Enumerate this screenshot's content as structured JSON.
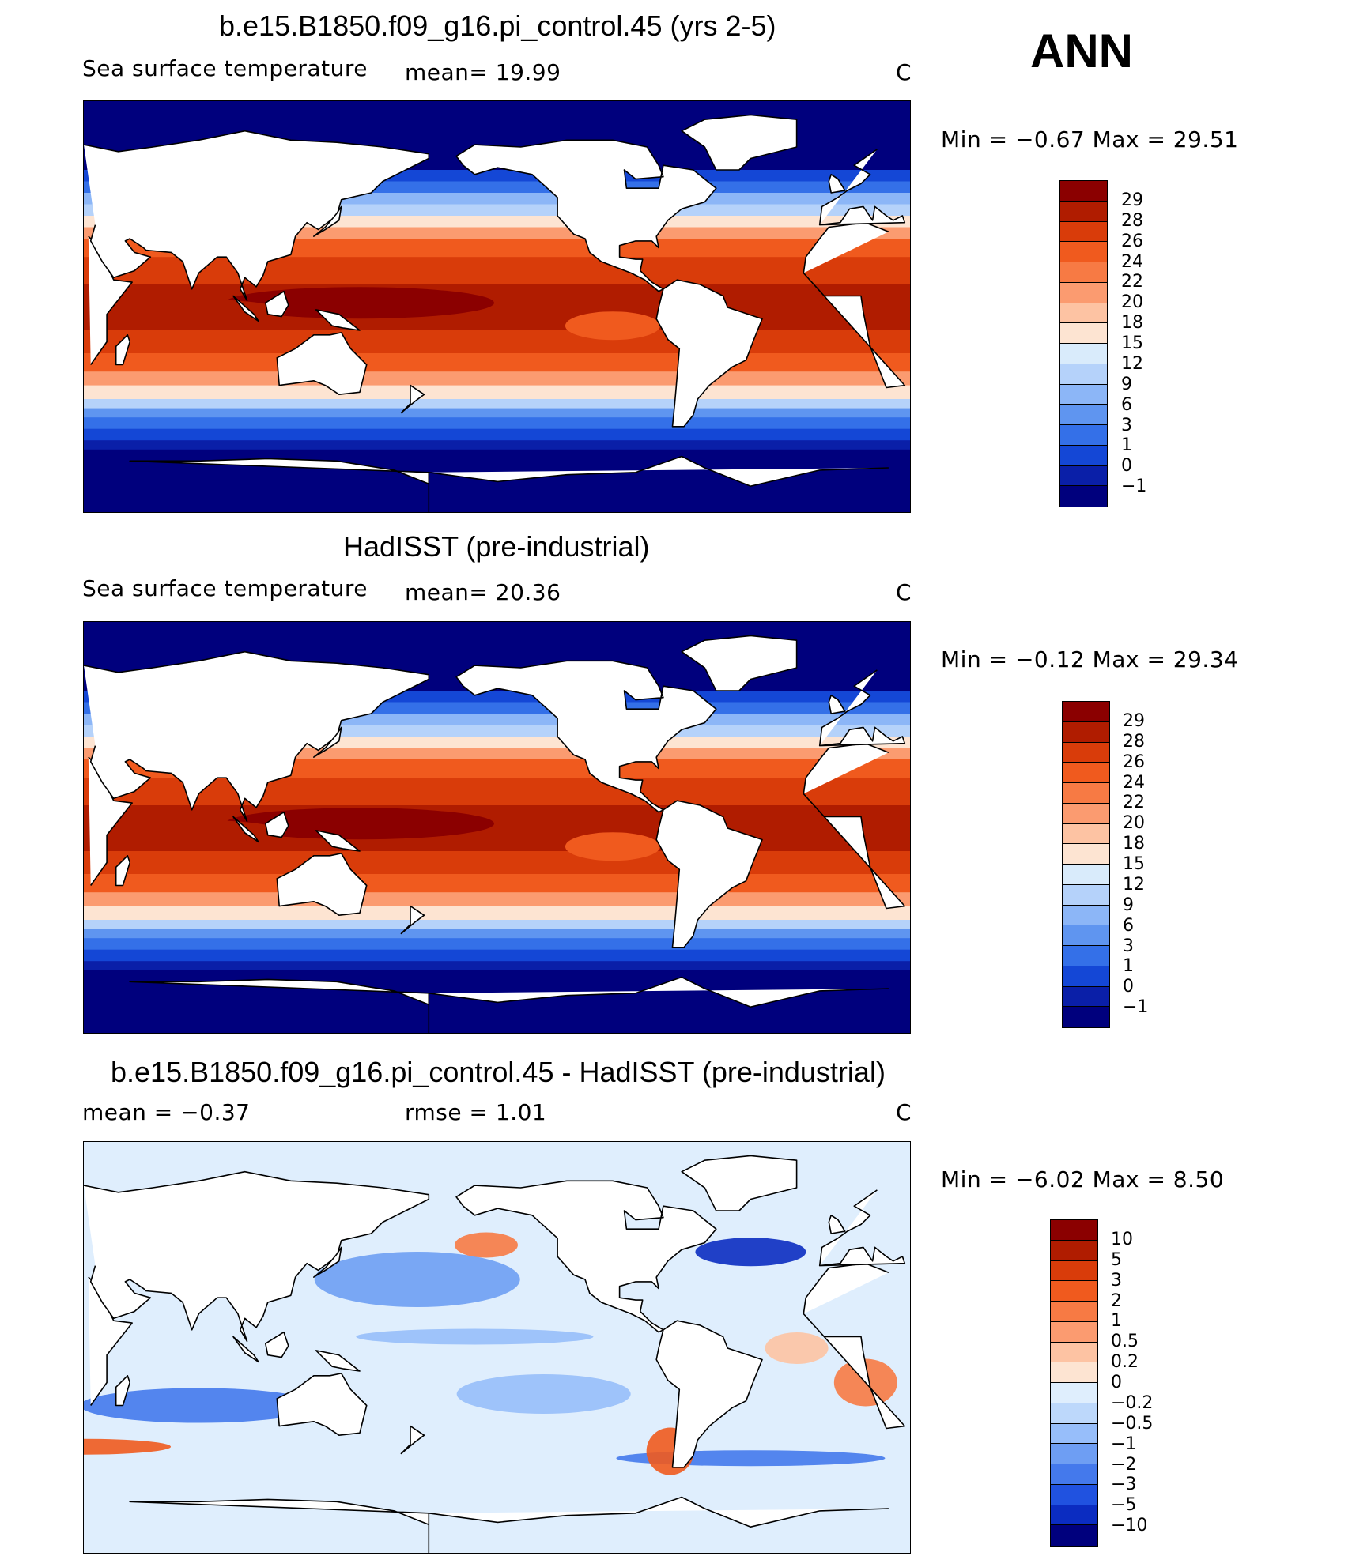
{
  "season": "ANN",
  "panels": [
    {
      "id": "model",
      "title": "b.e15.B1850.f09_g16.pi_control.45 (yrs 2-5)",
      "left_label": "Sea surface temperature",
      "mid_label": "mean=   19.99",
      "units": "C",
      "minmax": "Min  =    −0.67  Max  =     29.51",
      "levels": [
        "29",
        "28",
        "26",
        "24",
        "22",
        "20",
        "18",
        "15",
        "12",
        "9",
        "6",
        "3",
        "1",
        "0",
        "−1"
      ]
    },
    {
      "id": "obs",
      "title": "HadISST (pre-industrial)",
      "left_label": "Sea surface temperature",
      "mid_label": "mean=   20.36",
      "units": "C",
      "minmax": "Min  =    −0.12  Max  =     29.34",
      "levels": [
        "29",
        "28",
        "26",
        "24",
        "22",
        "20",
        "18",
        "15",
        "12",
        "9",
        "6",
        "3",
        "1",
        "0",
        "−1"
      ]
    },
    {
      "id": "diff",
      "title": "b.e15.B1850.f09_g16.pi_control.45 - HadISST (pre-industrial)",
      "left_label": "mean  =   −0.37",
      "mid_label": "rmse  =     1.01",
      "units": "C",
      "minmax": "Min  =    −6.02  Max  =      8.50",
      "levels": [
        "10",
        "5",
        "3",
        "2",
        "1",
        "0.5",
        "0.2",
        "0",
        "−0.2",
        "−0.5",
        "−1",
        "−2",
        "−3",
        "−5",
        "−10"
      ]
    }
  ],
  "colors": {
    "sst_scale": [
      "#8b0000",
      "#b01c00",
      "#d93c0a",
      "#f05a1e",
      "#f77a44",
      "#fb9b70",
      "#fdc3a3",
      "#fde4d2",
      "#d9ebfb",
      "#b5d2fa",
      "#8cb6f7",
      "#5f95f0",
      "#3470e8",
      "#1447d6",
      "#0a1fa8",
      "#00007d"
    ],
    "diff_scale": [
      "#8b0000",
      "#b01c00",
      "#d93c0a",
      "#f05a1e",
      "#f77a44",
      "#fb9b70",
      "#fdc3a3",
      "#fde4d2",
      "#dfeefd",
      "#bdd8fb",
      "#97befa",
      "#6e9ef3",
      "#4479ec",
      "#2052e0",
      "#0b2cc1",
      "#00007d"
    ]
  }
}
